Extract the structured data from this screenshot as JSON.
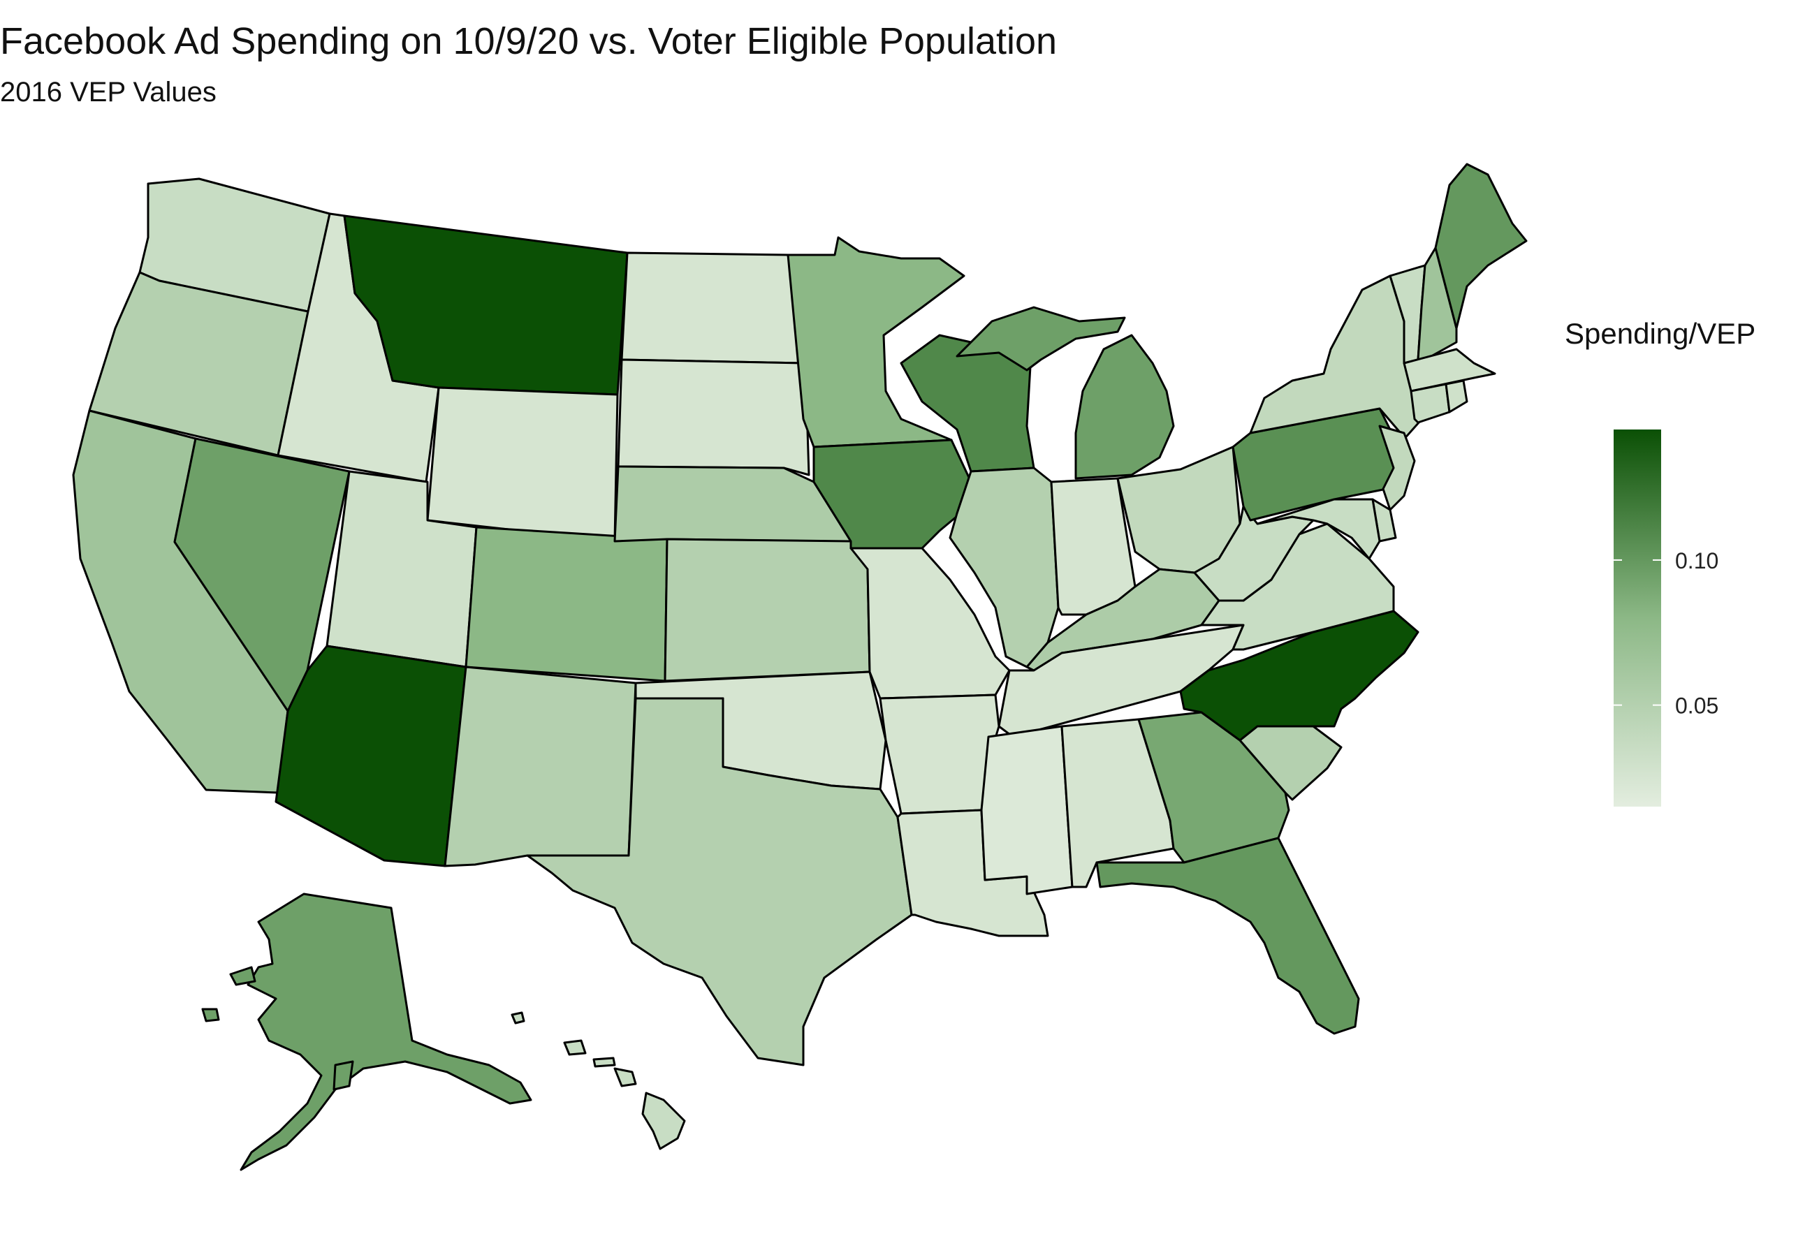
{
  "title": "Facebook Ad Spending on 10/9/20 vs. Voter Eligible Population",
  "subtitle": "2016 VEP Values",
  "legend": {
    "title": "Spending/VEP",
    "ticks": [
      {
        "label": "0.05",
        "value": 0.05
      },
      {
        "label": "0.10",
        "value": 0.1
      }
    ],
    "min": 0.015,
    "max": 0.145,
    "color_low": "#e3eddf",
    "color_high": "#0b5005"
  },
  "chart_data": {
    "type": "choropleth",
    "title": "Facebook Ad Spending on 10/9/20 vs. Voter Eligible Population",
    "subtitle": "2016 VEP Values",
    "legend_title": "Spending/VEP",
    "legend_position": "right",
    "value_range": [
      0.015,
      0.145
    ],
    "states": [
      {
        "state": "WA",
        "value": 0.035
      },
      {
        "state": "OR",
        "value": 0.05
      },
      {
        "state": "CA",
        "value": 0.065
      },
      {
        "state": "ID",
        "value": 0.025
      },
      {
        "state": "NV",
        "value": 0.095
      },
      {
        "state": "MT",
        "value": 0.145
      },
      {
        "state": "WY",
        "value": 0.025
      },
      {
        "state": "UT",
        "value": 0.03
      },
      {
        "state": "AZ",
        "value": 0.145
      },
      {
        "state": "CO",
        "value": 0.08
      },
      {
        "state": "NM",
        "value": 0.05
      },
      {
        "state": "ND",
        "value": 0.025
      },
      {
        "state": "SD",
        "value": 0.025
      },
      {
        "state": "NE",
        "value": 0.055
      },
      {
        "state": "KS",
        "value": 0.05
      },
      {
        "state": "OK",
        "value": 0.025
      },
      {
        "state": "TX",
        "value": 0.05
      },
      {
        "state": "MN",
        "value": 0.08
      },
      {
        "state": "IA",
        "value": 0.11
      },
      {
        "state": "MO",
        "value": 0.025
      },
      {
        "state": "AR",
        "value": 0.025
      },
      {
        "state": "LA",
        "value": 0.025
      },
      {
        "state": "WI",
        "value": 0.11
      },
      {
        "state": "IL",
        "value": 0.05
      },
      {
        "state": "MI",
        "value": 0.095
      },
      {
        "state": "IN",
        "value": 0.025
      },
      {
        "state": "OH",
        "value": 0.04
      },
      {
        "state": "KY",
        "value": 0.055
      },
      {
        "state": "TN",
        "value": 0.025
      },
      {
        "state": "MS",
        "value": 0.02
      },
      {
        "state": "AL",
        "value": 0.025
      },
      {
        "state": "GA",
        "value": 0.09
      },
      {
        "state": "FL",
        "value": 0.1
      },
      {
        "state": "SC",
        "value": 0.05
      },
      {
        "state": "NC",
        "value": 0.145
      },
      {
        "state": "VA",
        "value": 0.035
      },
      {
        "state": "WV",
        "value": 0.035
      },
      {
        "state": "PA",
        "value": 0.105
      },
      {
        "state": "NY",
        "value": 0.04
      },
      {
        "state": "VT",
        "value": 0.035
      },
      {
        "state": "NH",
        "value": 0.065
      },
      {
        "state": "ME",
        "value": 0.1
      },
      {
        "state": "MA",
        "value": 0.03
      },
      {
        "state": "CT",
        "value": 0.035
      },
      {
        "state": "RI",
        "value": 0.03
      },
      {
        "state": "NJ",
        "value": 0.04
      },
      {
        "state": "DE",
        "value": 0.035
      },
      {
        "state": "MD",
        "value": 0.035
      },
      {
        "state": "AK",
        "value": 0.095
      },
      {
        "state": "HI",
        "value": 0.035
      }
    ]
  }
}
